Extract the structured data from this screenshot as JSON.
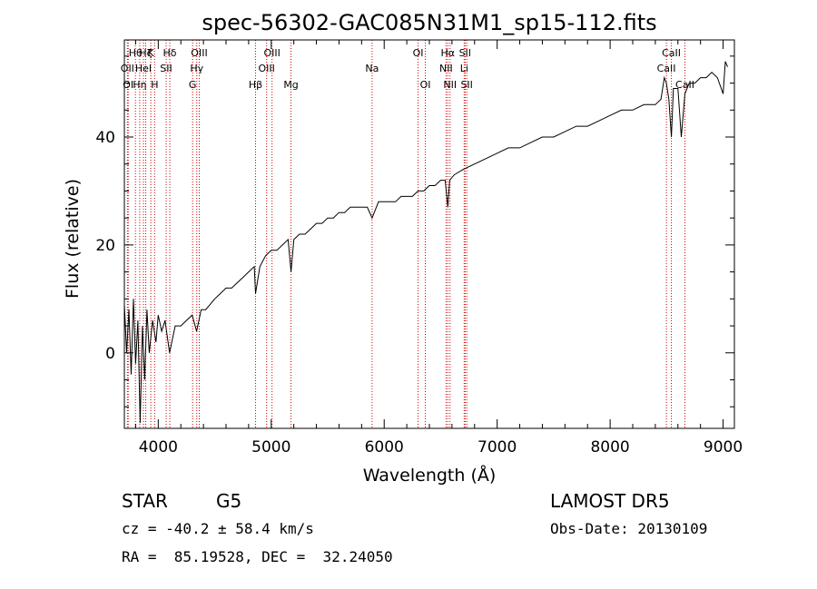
{
  "chart_data": {
    "type": "line",
    "title": "spec-56302-GAC085N31M1_sp15-112.fits",
    "xlabel": "Wavelength (Å)",
    "ylabel": "Flux (relative)",
    "xlim": [
      3700,
      9100
    ],
    "ylim": [
      -14,
      58
    ],
    "xticks": [
      4000,
      5000,
      6000,
      7000,
      8000,
      9000
    ],
    "xtick_labels": [
      "4000",
      "5000",
      "6000",
      "7000",
      "8000",
      "9000"
    ],
    "yticks": [
      0,
      20,
      40
    ],
    "ytick_labels": [
      "0",
      "20",
      "40"
    ],
    "grid": false,
    "line_color": "#000000",
    "marker_color": "#cc0000",
    "series": [
      {
        "x": [
          3700,
          3720,
          3740,
          3760,
          3780,
          3800,
          3820,
          3840,
          3860,
          3880,
          3900,
          3920,
          3950,
          3980,
          4000,
          4030,
          4060,
          4100,
          4150,
          4200,
          4250,
          4300,
          4340,
          4380,
          4420,
          4460,
          4500,
          4550,
          4600,
          4650,
          4700,
          4750,
          4800,
          4850,
          4861,
          4900,
          4950,
          5000,
          5050,
          5100,
          5150,
          5175,
          5200,
          5250,
          5300,
          5350,
          5400,
          5450,
          5500,
          5550,
          5600,
          5650,
          5700,
          5750,
          5800,
          5850,
          5893,
          5950,
          6000,
          6050,
          6100,
          6150,
          6200,
          6250,
          6300,
          6350,
          6400,
          6450,
          6500,
          6540,
          6563,
          6580,
          6620,
          6700,
          6800,
          6900,
          7000,
          7100,
          7200,
          7300,
          7400,
          7500,
          7600,
          7700,
          7800,
          7900,
          8000,
          8100,
          8200,
          8300,
          8400,
          8450,
          8480,
          8498,
          8520,
          8542,
          8560,
          8600,
          8630,
          8662,
          8700,
          8750,
          8800,
          8850,
          8900,
          8950,
          9000,
          9020,
          9040
        ],
        "y": [
          9,
          0,
          8,
          -4,
          10,
          -2,
          6,
          -13,
          5,
          -5,
          8,
          0,
          6,
          2,
          7,
          4,
          6,
          0,
          5,
          5,
          6,
          7,
          4,
          8,
          8,
          9,
          10,
          11,
          12,
          12,
          13,
          14,
          15,
          16,
          11,
          16,
          18,
          19,
          19,
          20,
          21,
          15,
          21,
          22,
          22,
          23,
          24,
          24,
          25,
          25,
          26,
          26,
          27,
          27,
          27,
          27,
          25,
          28,
          28,
          28,
          28,
          29,
          29,
          29,
          30,
          30,
          31,
          31,
          32,
          32,
          27,
          32,
          33,
          34,
          35,
          36,
          37,
          38,
          38,
          39,
          40,
          40,
          41,
          42,
          42,
          43,
          44,
          45,
          45,
          46,
          46,
          47,
          51,
          50,
          47,
          40,
          49,
          49,
          40,
          48,
          50,
          50,
          51,
          51,
          52,
          51,
          48,
          54,
          53
        ]
      }
    ],
    "line_markers": [
      {
        "x": 3727,
        "label": "OII",
        "row": 1
      },
      {
        "x": 3734,
        "label": "OI",
        "row": 2
      },
      {
        "x": 3798,
        "label": "Hθ",
        "row": 0
      },
      {
        "x": 3836,
        "label": "Hη",
        "row": 2
      },
      {
        "x": 3869,
        "label": "HeI",
        "row": 1
      },
      {
        "x": 3889,
        "label": "Hζ",
        "row": 0
      },
      {
        "x": 3934,
        "label": "K",
        "row": 0
      },
      {
        "x": 3968,
        "label": "H",
        "row": 2
      },
      {
        "x": 4070,
        "label": "SII",
        "row": 1
      },
      {
        "x": 4102,
        "label": "Hδ",
        "row": 0
      },
      {
        "x": 4304,
        "label": "G",
        "row": 2
      },
      {
        "x": 4341,
        "label": "Hγ",
        "row": 1
      },
      {
        "x": 4363,
        "label": "OIII",
        "row": 0
      },
      {
        "x": 4861,
        "label": "Hβ",
        "row": 2
      },
      {
        "x": 4959,
        "label": "OIII",
        "row": 1
      },
      {
        "x": 5007,
        "label": "OIII",
        "row": 0
      },
      {
        "x": 5175,
        "label": "Mg",
        "row": 2
      },
      {
        "x": 5893,
        "label": "Na",
        "row": 1
      },
      {
        "x": 6300,
        "label": "OI",
        "row": 0
      },
      {
        "x": 6364,
        "label": "OI",
        "row": 2
      },
      {
        "x": 6548,
        "label": "NII",
        "row": 1
      },
      {
        "x": 6563,
        "label": "Hα",
        "row": 0
      },
      {
        "x": 6583,
        "label": "NII",
        "row": 2
      },
      {
        "x": 6708,
        "label": "Li",
        "row": 1
      },
      {
        "x": 6716,
        "label": "SII",
        "row": 0
      },
      {
        "x": 6731,
        "label": "SII",
        "row": 2
      },
      {
        "x": 8498,
        "label": "CaII",
        "row": 1
      },
      {
        "x": 8542,
        "label": "CaII",
        "row": 0
      },
      {
        "x": 8662,
        "label": "CaII",
        "row": 2
      }
    ]
  },
  "info": {
    "object_class": "STAR",
    "subclass": "G5",
    "survey": "LAMOST DR5",
    "redshift_line": "cz = -40.2 ± 58.4 km/s",
    "obs_date_line": "Obs-Date: 20130109",
    "coords_line": "RA =  85.19528, DEC =  32.24050"
  }
}
